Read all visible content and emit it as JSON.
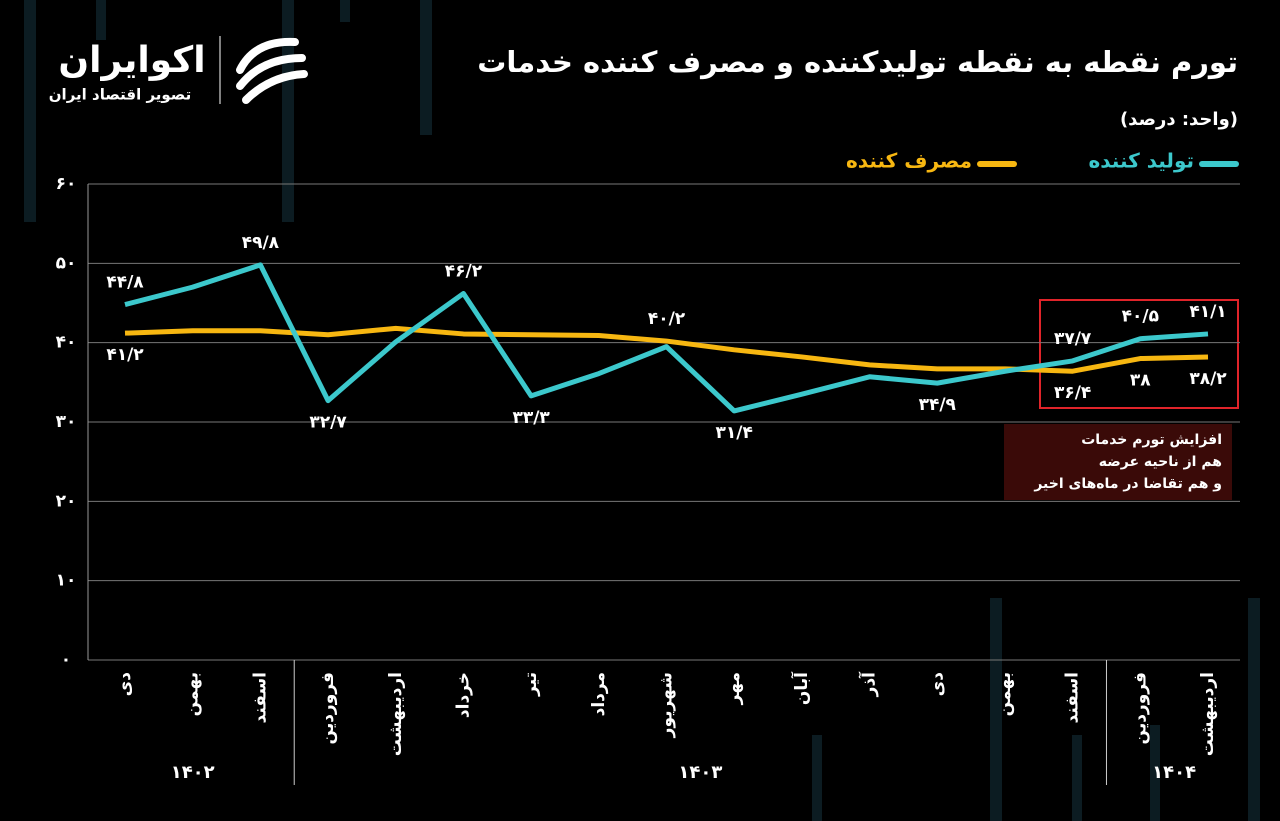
{
  "chart_data": {
    "type": "line",
    "title": "تورم نقطه به نقطه تولیدکننده و مصرف کننده خدمات",
    "subtitle": "(واحد: درصد)",
    "brand": {
      "name": "اکوایران",
      "tagline": "تصویر اقتصاد ایران"
    },
    "categories": [
      "دی",
      "بهمن",
      "اسفند",
      "فروردین",
      "اردیبهشت",
      "خرداد",
      "تیر",
      "مرداد",
      "شهریور",
      "مهر",
      "آبان",
      "آذر",
      "دی",
      "بهمن",
      "اسفند",
      "فروردین",
      "اردیبهشت"
    ],
    "year_groups": [
      {
        "label": "۱۴۰۲",
        "span": 3
      },
      {
        "label": "۱۴۰۳",
        "span": 12
      },
      {
        "label": "۱۴۰۴",
        "span": 2
      }
    ],
    "series": [
      {
        "name": "تولید کننده",
        "color": "#3cc8cc",
        "values": [
          44.8,
          47.0,
          49.8,
          32.7,
          40.1,
          46.2,
          33.3,
          36.1,
          39.5,
          31.4,
          33.5,
          35.7,
          34.9,
          36.4,
          37.7,
          40.5,
          41.1
        ],
        "value_labels": [
          "۴۴/۸",
          null,
          "۴۹/۸",
          "۳۲/۷",
          null,
          "۴۶/۲",
          "۳۳/۳",
          null,
          null,
          "۳۱/۴",
          null,
          null,
          "۳۴/۹",
          null,
          "۳۷/۷",
          "۴۰/۵",
          "۴۱/۱"
        ]
      },
      {
        "name": "مصرف کننده",
        "color": "#f7b711",
        "values": [
          41.2,
          41.5,
          41.5,
          41.0,
          41.8,
          41.1,
          41.0,
          40.9,
          40.2,
          39.1,
          38.2,
          37.2,
          36.7,
          36.7,
          36.4,
          38.0,
          38.2
        ],
        "value_labels": [
          "۴۱/۲",
          null,
          null,
          null,
          null,
          null,
          null,
          null,
          "۴۰/۲",
          null,
          null,
          null,
          null,
          null,
          "۳۶/۴",
          "۳۸",
          "۳۸/۲"
        ]
      }
    ],
    "annotation": [
      "افزایش تورم خدمات",
      "هم از ناحیه عرضه",
      "و هم تقاضا در ماه‌های اخیر"
    ],
    "ylim": [
      0,
      60
    ],
    "yticks": [
      {
        "value": 0,
        "label": "۰"
      },
      {
        "value": 10,
        "label": "۱۰"
      },
      {
        "value": 20,
        "label": "۲۰"
      },
      {
        "value": 30,
        "label": "۳۰"
      },
      {
        "value": 40,
        "label": "۴۰"
      },
      {
        "value": 50,
        "label": "۵۰"
      },
      {
        "value": 60,
        "label": "۶۰"
      }
    ],
    "grid": true
  }
}
